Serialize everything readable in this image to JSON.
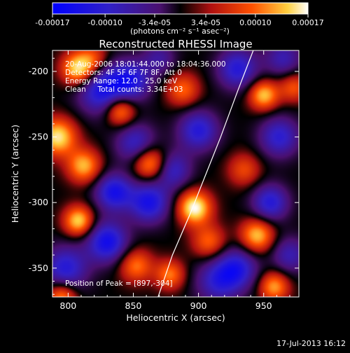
{
  "chart_data": {
    "type": "heatmap",
    "title": "Reconstructed RHESSI Image",
    "xlabel": "Heliocentric X (arcsec)",
    "ylabel": "Heliocentric Y (arcsec)",
    "xlim": [
      788,
      977
    ],
    "ylim": [
      -372,
      -184
    ],
    "x_ticks": [
      800,
      850,
      900,
      950
    ],
    "y_ticks": [
      -200,
      -250,
      -300,
      -350
    ],
    "colorbar": {
      "range": [
        -0.00017,
        0.00017
      ],
      "tick_labels": [
        "-0.00017",
        "-0.00010",
        "-3.4e-05",
        "3.4e-05",
        "0.00010",
        "0.00017"
      ],
      "tick_values": [
        -0.00017,
        -0.0001,
        -3.4e-05,
        3.4e-05,
        0.0001,
        0.00017
      ],
      "unit_label": "(photons cm⁻² s⁻¹ asec⁻²)"
    },
    "annotations": {
      "time_range": "20-Aug-2006 18:01:44.000 to 18:04:36.000",
      "detectors": "Detectors: 4F 5F 6F 7F 8F, Att 0",
      "energy_range": "Energy Range: 12.0 - 25.0 keV",
      "clean_counts": "Clean     Total counts: 3.34E+03",
      "peak": "Position of Peak = [897,-304]"
    },
    "peak_position": [
      897,
      -304
    ],
    "limb_curve": [
      [
        869,
        -372
      ],
      [
        880,
        -340
      ],
      [
        893,
        -310
      ],
      [
        905,
        -280
      ],
      [
        917,
        -250
      ],
      [
        930,
        -215
      ],
      [
        942,
        -184
      ]
    ],
    "blobs": [
      [
        808,
        -198,
        0.95,
        9
      ],
      [
        826,
        -214,
        -0.8,
        13
      ],
      [
        792,
        -250,
        0.9,
        10
      ],
      [
        812,
        -272,
        0.75,
        9
      ],
      [
        840,
        -230,
        0.75,
        8
      ],
      [
        848,
        -207,
        -0.7,
        11
      ],
      [
        852,
        -255,
        -0.6,
        11
      ],
      [
        863,
        -270,
        0.8,
        9
      ],
      [
        835,
        -292,
        -0.8,
        10
      ],
      [
        862,
        -300,
        -0.8,
        11
      ],
      [
        830,
        -330,
        -0.85,
        11
      ],
      [
        852,
        -348,
        0.6,
        9
      ],
      [
        798,
        -350,
        -0.7,
        12
      ],
      [
        808,
        -314,
        0.85,
        8
      ],
      [
        888,
        -214,
        0.55,
        9
      ],
      [
        900,
        -245,
        -0.7,
        11
      ],
      [
        880,
        -275,
        -0.6,
        10
      ],
      [
        897,
        -304,
        1.0,
        9
      ],
      [
        908,
        -330,
        0.55,
        9
      ],
      [
        915,
        -360,
        -0.6,
        12
      ],
      [
        930,
        -198,
        -0.7,
        11
      ],
      [
        950,
        -218,
        0.8,
        8
      ],
      [
        973,
        -212,
        0.5,
        8
      ],
      [
        962,
        -250,
        -0.65,
        11
      ],
      [
        935,
        -275,
        0.45,
        9
      ],
      [
        955,
        -300,
        -0.7,
        10
      ],
      [
        945,
        -325,
        0.8,
        9
      ],
      [
        970,
        -340,
        -0.5,
        10
      ],
      [
        958,
        -364,
        0.7,
        8
      ],
      [
        930,
        -350,
        -0.65,
        11
      ],
      [
        878,
        -355,
        0.6,
        8
      ],
      [
        820,
        -190,
        0.4,
        8
      ],
      [
        965,
        -190,
        -0.5,
        10
      ],
      [
        795,
        -372,
        0.7,
        8
      ],
      [
        870,
        -190,
        -0.4,
        9
      ]
    ]
  },
  "footer": {
    "timestamp": "17-Jul-2013 16:12"
  }
}
